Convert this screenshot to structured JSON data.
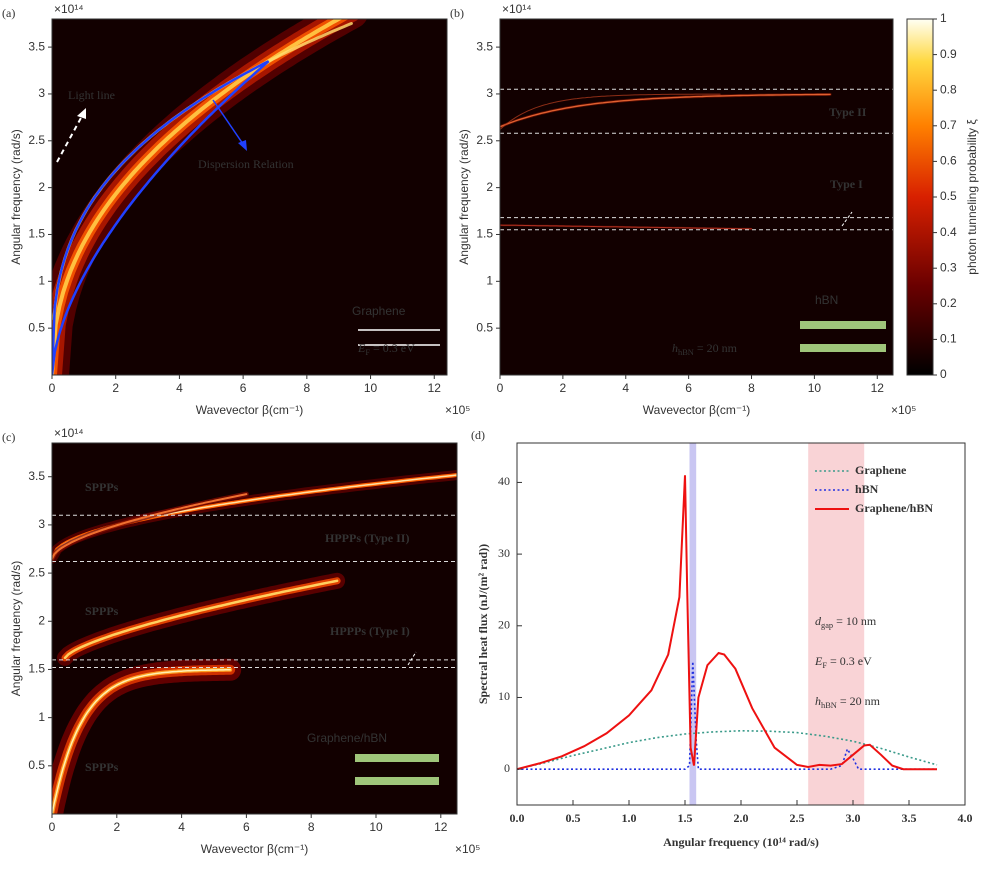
{
  "chart_data": [
    {
      "type": "heatmap",
      "label": "(a)",
      "xlabel": "Wavevector β(cm⁻¹)",
      "ylabel": "Angular frequency (rad/s)",
      "x_multiplier": "×10⁵",
      "y_multiplier": "×10¹⁴",
      "xlim": [
        0,
        12.4
      ],
      "xticks": [
        0,
        2,
        4,
        6,
        8,
        10,
        12
      ],
      "ylim": [
        0,
        3.8
      ],
      "yticks": [
        0.5,
        1,
        1.5,
        2,
        2.5,
        3,
        3.5
      ],
      "annotations": [
        "Light line",
        "Dispersion Relation",
        "Graphene",
        {
          "main": "E",
          "sub": "F",
          "rest": " = 0.3 eV"
        }
      ]
    },
    {
      "type": "heatmap",
      "label": "(b)",
      "xlabel": "Wavevector β(cm⁻¹)",
      "ylabel": "Angular frequency (rad/s)",
      "x_multiplier": "×10⁵",
      "y_multiplier": "×10¹⁴",
      "xlim": [
        0,
        12.5
      ],
      "xticks": [
        0,
        2,
        4,
        6,
        8,
        10,
        12
      ],
      "ylim": [
        0,
        3.8
      ],
      "yticks": [
        0.5,
        1,
        1.5,
        2,
        2.5,
        3,
        3.5
      ],
      "hlines": [
        3.05,
        2.58,
        1.68,
        1.55
      ],
      "annotations": [
        "Type II",
        "Type I",
        "hBN",
        {
          "main": "h",
          "sub": "hBN",
          "rest": " = 20 nm"
        }
      ],
      "colorbar": {
        "label": "photon tunneling probability ξ",
        "ylim": [
          0,
          1
        ],
        "yticks": [
          0,
          0.1,
          0.2,
          0.3,
          0.4,
          0.5,
          0.6,
          0.7,
          0.8,
          0.9,
          1
        ]
      }
    },
    {
      "type": "heatmap",
      "label": "(c)",
      "xlabel": "Wavevector β(cm⁻¹)",
      "ylabel": "Angular frequency (rad/s)",
      "x_multiplier": "×10⁵",
      "y_multiplier": "×10¹⁴",
      "xlim": [
        0,
        12.5
      ],
      "xticks": [
        0,
        2,
        4,
        6,
        8,
        10,
        12
      ],
      "ylim": [
        0,
        3.85
      ],
      "yticks": [
        0.5,
        1,
        1.5,
        2,
        2.5,
        3,
        3.5
      ],
      "hlines": [
        3.1,
        2.62,
        1.6,
        1.52
      ],
      "annotations": [
        "SPPPs",
        "SPPPs",
        "SPPPs",
        "HPPPs (Type II)",
        "HPPPs (Type I)",
        "Graphene/hBN"
      ]
    },
    {
      "type": "line",
      "label": "(d)",
      "xlabel": "Angular frequency (10¹⁴ rad/s)",
      "ylabel": "Spectral heat flux (nJ/(m² rad))",
      "xlim": [
        0,
        4
      ],
      "xticks": [
        {
          "value": 0,
          "label": "0.0"
        },
        0.5,
        {
          "value": 1,
          "label": "1.0"
        },
        1.5,
        {
          "value": 2,
          "label": "2.0"
        },
        2.5,
        {
          "value": 3,
          "label": "3.0"
        },
        3.5,
        {
          "value": 4,
          "label": "4.0"
        }
      ],
      "ylim": [
        -5,
        45.5
      ],
      "yticks": [
        0,
        10,
        20,
        30,
        40
      ],
      "legend": "upper right",
      "bands": [
        {
          "from": 1.54,
          "to": 1.6,
          "color": "#c9c6f2"
        },
        {
          "from": 2.6,
          "to": 3.1,
          "color": "#f9d3d6"
        }
      ],
      "series": [
        {
          "name": "Graphene",
          "color": "#3a9a8a",
          "style": "dotted",
          "x": [
            0,
            0.25,
            0.5,
            0.75,
            1,
            1.25,
            1.5,
            1.75,
            2,
            2.25,
            2.5,
            2.75,
            3,
            3.25,
            3.5,
            3.75
          ],
          "values": [
            0,
            0.9,
            1.9,
            2.8,
            3.7,
            4.4,
            4.9,
            5.2,
            5.35,
            5.3,
            5.1,
            4.6,
            3.9,
            2.9,
            1.7,
            0.6
          ]
        },
        {
          "name": "hBN",
          "color": "#2030e0",
          "style": "dotted",
          "x": [
            0,
            1.5,
            1.54,
            1.57,
            1.6,
            1.62,
            2.8,
            2.9,
            2.95,
            3.0,
            3.05,
            3.75
          ],
          "values": [
            0,
            0,
            0.5,
            15,
            4,
            0,
            0,
            0.5,
            2.8,
            1.5,
            0,
            0
          ]
        },
        {
          "name": "Graphene/hBN",
          "color": "#ee1111",
          "style": "solid",
          "x": [
            0,
            0.2,
            0.4,
            0.6,
            0.8,
            1.0,
            1.2,
            1.35,
            1.45,
            1.5,
            1.52,
            1.55,
            1.58,
            1.62,
            1.7,
            1.8,
            1.85,
            1.95,
            2.1,
            2.3,
            2.5,
            2.6,
            2.7,
            2.8,
            2.9,
            3.0,
            3.1,
            3.15,
            3.25,
            3.35,
            3.45,
            3.75
          ],
          "values": [
            0,
            0.8,
            1.8,
            3.2,
            5,
            7.5,
            11,
            16,
            24,
            41,
            25,
            3,
            0.5,
            10,
            14.5,
            16.2,
            16,
            14,
            8.5,
            3,
            0.6,
            0.3,
            0.6,
            0.5,
            0.7,
            2,
            3.3,
            3.4,
            2,
            0.5,
            0,
            0
          ]
        }
      ],
      "annotations": [
        {
          "main": "d",
          "sub": "gap",
          "rest": " = 10 nm"
        },
        {
          "main": "E",
          "sub": "F",
          "rest": " = 0.3 eV"
        },
        {
          "main": "h",
          "sub": "hBN",
          "rest": " = 20 nm"
        }
      ]
    }
  ]
}
